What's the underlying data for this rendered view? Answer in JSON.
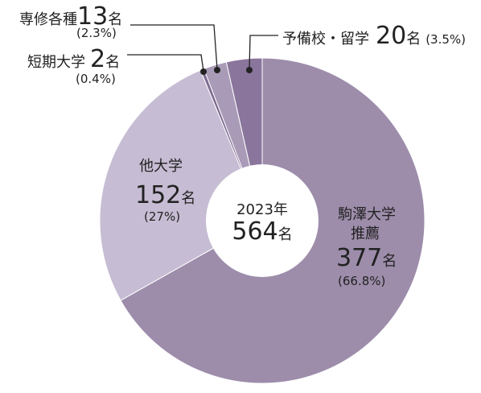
{
  "chart_data": {
    "type": "pie",
    "year_label": "2023年",
    "total_value": "564",
    "unit": "名",
    "slices": [
      {
        "name": "駒澤大学推薦",
        "name_line1": "駒澤大学",
        "name_line2": "推薦",
        "value": 377,
        "percent_label": "(66.8%)",
        "color": "#9d8dab"
      },
      {
        "name": "他大学",
        "value": 152,
        "percent_label": "(27%)",
        "color": "#c6bcd3"
      },
      {
        "name": "短期大学",
        "value": 2,
        "percent_label": "(0.4%)",
        "color": "#7d6a90"
      },
      {
        "name": "専修各種",
        "value": 13,
        "percent_label": "(2.3%)",
        "color": "#a99bb8"
      },
      {
        "name": "予備校・留学",
        "value": 20,
        "percent_label": "(3.5%)",
        "color": "#8a759c"
      }
    ]
  }
}
